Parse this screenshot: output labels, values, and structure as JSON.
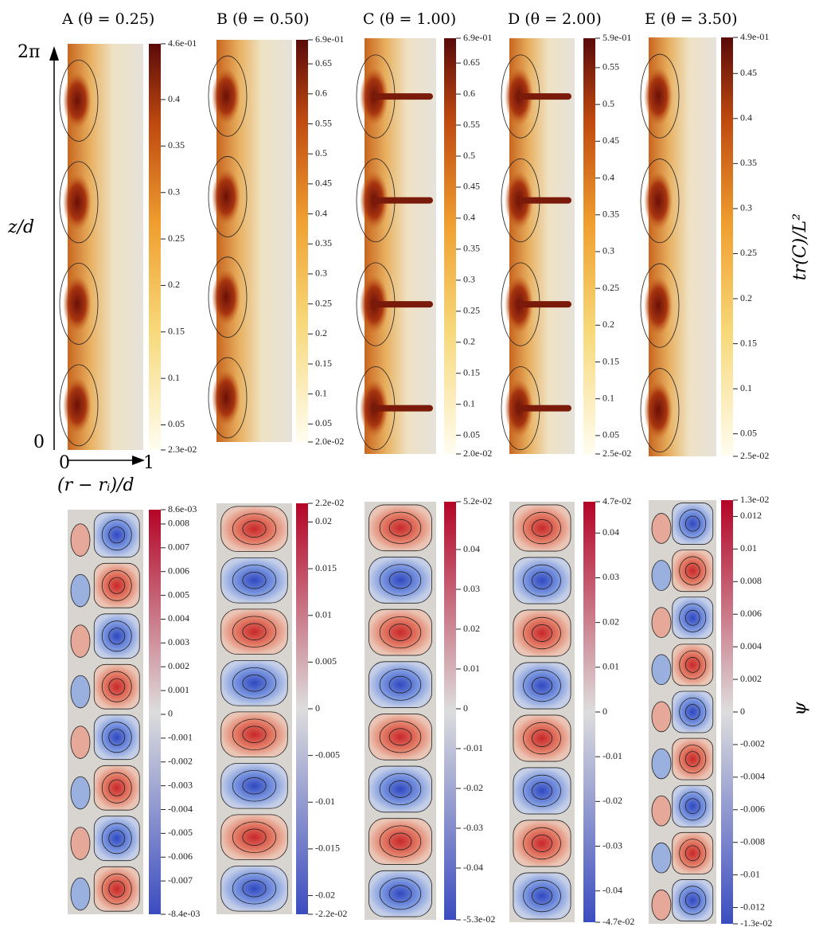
{
  "panel_titles": [
    "A (θ = 0.25)",
    "B (θ = 0.50)",
    "C (θ = 1.00)",
    "D (θ = 2.00)",
    "E (θ = 3.50)"
  ],
  "axes": {
    "y_top": "2π",
    "y_bottom": "0",
    "y_label": "z/d",
    "x_left": "0",
    "x_right": "1",
    "x_label": "(r − rᵢ)/d"
  },
  "top_colorbar_label": "tr(C)/L²",
  "bottom_colorbar_label": "ψ",
  "top_colorbars": [
    [
      "4.6e-01",
      "0.4",
      "0.35",
      "0.3",
      "0.25",
      "0.2",
      "0.15",
      "0.1",
      "0.05",
      "2.3e-02"
    ],
    [
      "6.9e-01",
      "0.65",
      "0.6",
      "0.55",
      "0.5",
      "0.45",
      "0.4",
      "0.35",
      "0.3",
      "0.25",
      "0.2",
      "0.15",
      "0.1",
      "0.05",
      "2.0e-02"
    ],
    [
      "6.9e-01",
      "0.65",
      "0.6",
      "0.55",
      "0.5",
      "0.45",
      "0.4",
      "0.35",
      "0.3",
      "0.25",
      "0.2",
      "0.15",
      "0.1",
      "0.05",
      "2.0e-02"
    ],
    [
      "5.9e-01",
      "0.55",
      "0.5",
      "0.45",
      "0.4",
      "0.35",
      "0.3",
      "0.25",
      "0.2",
      "0.15",
      "0.1",
      "0.05",
      "2.5e-02"
    ],
    [
      "4.9e-01",
      "0.45",
      "0.4",
      "0.35",
      "0.3",
      "0.25",
      "0.2",
      "0.15",
      "0.1",
      "0.05",
      "2.5e-02"
    ]
  ],
  "bottom_colorbars": [
    [
      "8.6e-03",
      "0.008",
      "0.007",
      "0.006",
      "0.005",
      "0.004",
      "0.003",
      "0.002",
      "0.001",
      "0",
      "-0.001",
      "-0.002",
      "-0.003",
      "-0.004",
      "-0.005",
      "-0.006",
      "-0.007",
      "-8.4e-03"
    ],
    [
      "2.2e-02",
      "0.02",
      "0.015",
      "0.01",
      "0.005",
      "0",
      "-0.005",
      "-0.01",
      "-0.015",
      "-0.02",
      "-2.2e-02"
    ],
    [
      "5.2e-02",
      "0.04",
      "0.03",
      "0.02",
      "0.01",
      "0",
      "-0.01",
      "-0.02",
      "-0.03",
      "-0.04",
      "-5.3e-02"
    ],
    [
      "4.7e-02",
      "0.04",
      "0.03",
      "0.02",
      "0.01",
      "0",
      "-0.01",
      "-0.02",
      "-0.03",
      "-0.04",
      "-4.7e-02"
    ],
    [
      "1.3e-02",
      "0.012",
      "0.01",
      "0.008",
      "0.006",
      "0.004",
      "0.002",
      "0",
      "-0.002",
      "-0.004",
      "-0.006",
      "-0.008",
      "-0.01",
      "-0.012",
      "-1.3e-02"
    ]
  ]
}
